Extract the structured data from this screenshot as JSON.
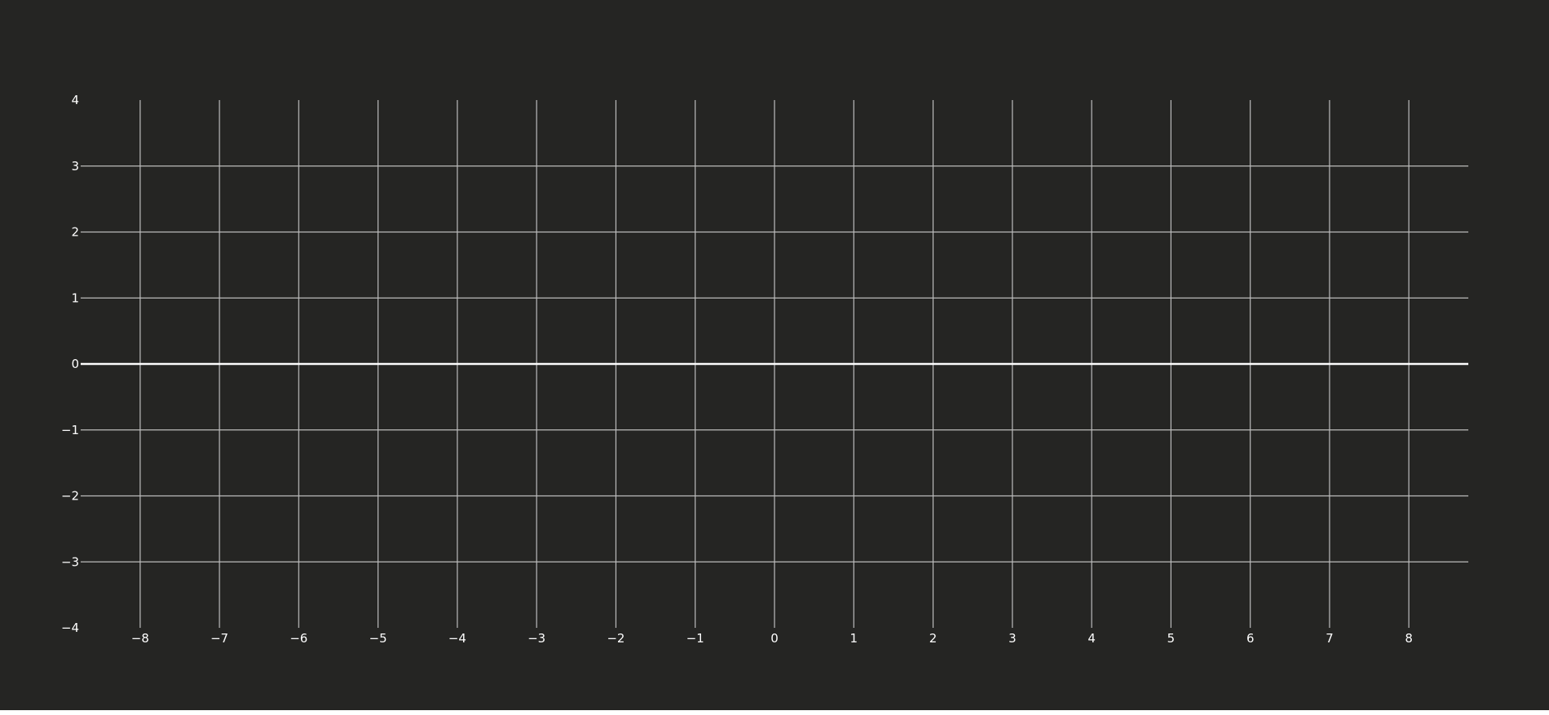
{
  "chart_data": {
    "type": "line",
    "title": "",
    "xlabel": "",
    "ylabel": "",
    "xlim": [
      -8.75,
      8.75
    ],
    "ylim": [
      -4,
      4
    ],
    "x_ticks": [
      -8,
      -7,
      -6,
      -5,
      -4,
      -3,
      -2,
      -1,
      0,
      1,
      2,
      3,
      4,
      5,
      6,
      7,
      8
    ],
    "y_ticks": [
      -4,
      -3,
      -2,
      -1,
      0,
      1,
      2,
      3,
      4
    ],
    "x_tick_labels": [
      "−8",
      "−7",
      "−6",
      "−5",
      "−4",
      "−3",
      "−2",
      "−1",
      "0",
      "1",
      "2",
      "3",
      "4",
      "5",
      "6",
      "7",
      "8"
    ],
    "y_tick_labels": [
      "−4",
      "−3",
      "−2",
      "−1",
      "0",
      "1",
      "2",
      "3",
      "4"
    ],
    "series": [
      {
        "x": [
          -8.75,
          8.75
        ],
        "y": [
          0,
          0
        ]
      }
    ],
    "grid": true,
    "colors": {
      "background": "#252523",
      "grid": "#bdbdbd",
      "text": "#ffffff",
      "series": "#ffffff"
    }
  }
}
